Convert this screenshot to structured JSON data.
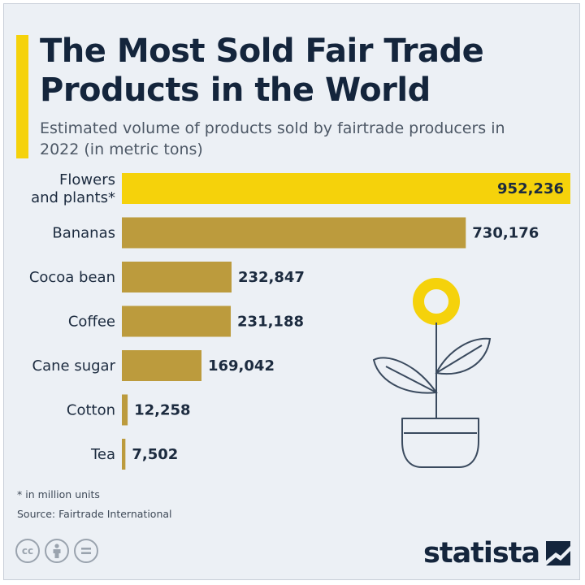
{
  "header": {
    "title": "The Most Sold Fair Trade Products in the World",
    "subtitle": "Estimated volume of products sold by fairtrade producers in 2022 (in metric tons)"
  },
  "chart_data": {
    "type": "bar",
    "orientation": "horizontal",
    "title": "The Most Sold Fair Trade Products in the World",
    "subtitle": "Estimated volume of products sold by fairtrade producers in 2022 (in metric tons)",
    "categories": [
      "Flowers and plants*",
      "Bananas",
      "Cocoa bean",
      "Coffee",
      "Cane sugar",
      "Cotton",
      "Tea"
    ],
    "category_lines": [
      [
        "Flowers",
        "and plants*"
      ],
      [
        "Bananas"
      ],
      [
        "Cocoa bean"
      ],
      [
        "Coffee"
      ],
      [
        "Cane sugar"
      ],
      [
        "Cotton"
      ],
      [
        "Tea"
      ]
    ],
    "values": [
      952236,
      730176,
      232847,
      231188,
      169042,
      12258,
      7502
    ],
    "value_labels": [
      "952,236",
      "730,176",
      "232,847",
      "231,188",
      "169,042",
      "12,258",
      "7,502"
    ],
    "highlight_index": 0,
    "xlim": [
      0,
      952236
    ],
    "grid": false,
    "legend": "none",
    "colors": {
      "highlight": "#f5d20b",
      "bar": "#bc9b3d"
    }
  },
  "footer": {
    "footnote": "* in million units",
    "source": "Source: Fairtrade International",
    "license_icons": [
      "creative-commons-icon",
      "attribution-person-icon",
      "no-derivatives-icon"
    ],
    "brand": "statista"
  }
}
